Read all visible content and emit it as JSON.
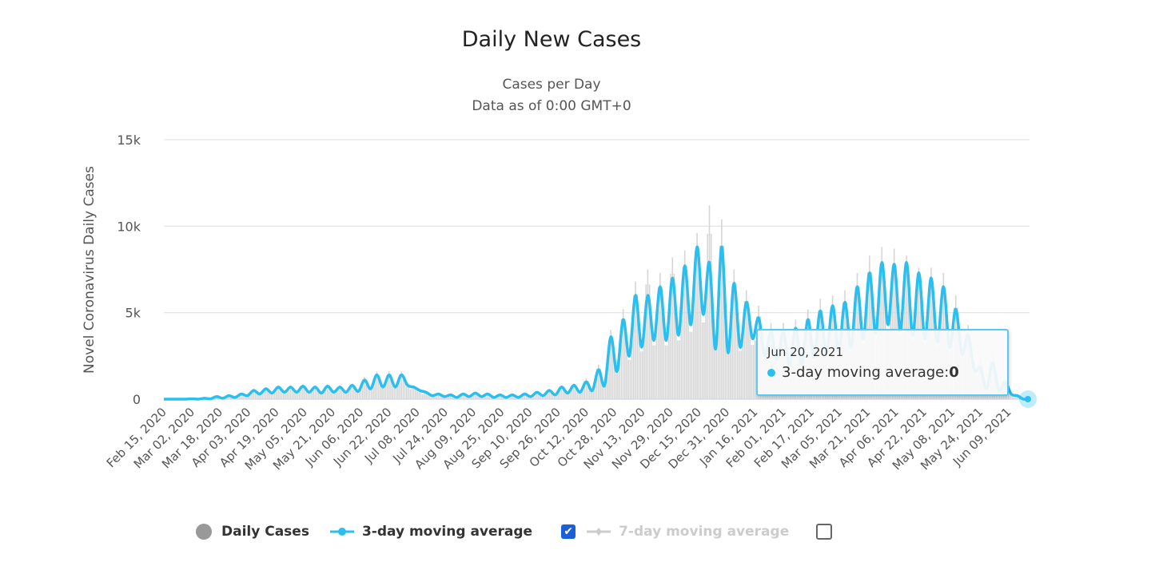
{
  "chart_data": {
    "type": "bar+line",
    "title": "Daily New Cases",
    "subtitle": [
      "Cases per Day",
      "Data as of 0:00 GMT+0"
    ],
    "ylabel": "Novel Coronavirus Daily Cases",
    "ylim": [
      0,
      15000
    ],
    "y_ticks": [
      {
        "value": 0,
        "label": "0"
      },
      {
        "value": 5000,
        "label": "5k"
      },
      {
        "value": 10000,
        "label": "10k"
      },
      {
        "value": 15000,
        "label": "15k"
      }
    ],
    "x_range": [
      "2020-02-15",
      "2021-06-20"
    ],
    "x_tick_labels": [
      "Feb 15, 2020",
      "Mar 02, 2020",
      "Mar 18, 2020",
      "Apr 03, 2020",
      "Apr 19, 2020",
      "May 05, 2020",
      "May 21, 2020",
      "Jun 06, 2020",
      "Jun 22, 2020",
      "Jul 08, 2020",
      "Jul 24, 2020",
      "Aug 09, 2020",
      "Aug 25, 2020",
      "Sep 10, 2020",
      "Sep 26, 2020",
      "Oct 12, 2020",
      "Oct 28, 2020",
      "Nov 13, 2020",
      "Nov 29, 2020",
      "Dec 15, 2020",
      "Dec 31, 2020",
      "Jan 16, 2021",
      "Feb 01, 2021",
      "Feb 17, 2021",
      "Mar 05, 2021",
      "Mar 21, 2021",
      "Apr 06, 2021",
      "Apr 22, 2021",
      "May 08, 2021",
      "May 24, 2021",
      "Jun 09, 2021"
    ],
    "grid": true,
    "legend_position": "bottom",
    "weeks": [
      "2020-02-15",
      "2020-02-22",
      "2020-02-29",
      "2020-03-07",
      "2020-03-14",
      "2020-03-21",
      "2020-03-28",
      "2020-04-04",
      "2020-04-11",
      "2020-04-18",
      "2020-04-25",
      "2020-05-02",
      "2020-05-09",
      "2020-05-16",
      "2020-05-23",
      "2020-05-30",
      "2020-06-06",
      "2020-06-13",
      "2020-06-20",
      "2020-06-27",
      "2020-07-04",
      "2020-07-11",
      "2020-07-18",
      "2020-07-25",
      "2020-08-01",
      "2020-08-08",
      "2020-08-15",
      "2020-08-22",
      "2020-08-29",
      "2020-09-05",
      "2020-09-12",
      "2020-09-19",
      "2020-09-26",
      "2020-10-03",
      "2020-10-10",
      "2020-10-17",
      "2020-10-24",
      "2020-10-31",
      "2020-11-07",
      "2020-11-14",
      "2020-11-21",
      "2020-11-28",
      "2020-12-05",
      "2020-12-12",
      "2020-12-19",
      "2020-12-26",
      "2021-01-02",
      "2021-01-09",
      "2021-01-16",
      "2021-01-23",
      "2021-01-30",
      "2021-02-06",
      "2021-02-13",
      "2021-02-20",
      "2021-02-27",
      "2021-03-06",
      "2021-03-13",
      "2021-03-20",
      "2021-03-27",
      "2021-04-03",
      "2021-04-10",
      "2021-04-17",
      "2021-04-24",
      "2021-05-01",
      "2021-05-08",
      "2021-05-15",
      "2021-05-22",
      "2021-05-29",
      "2021-06-05",
      "2021-06-12"
    ],
    "series": [
      {
        "name": "Daily Cases",
        "type": "bar",
        "color": "#d6d6d6",
        "weekly_max": [
          0,
          0,
          30,
          60,
          180,
          250,
          350,
          600,
          700,
          800,
          800,
          850,
          800,
          850,
          800,
          900,
          1300,
          1600,
          1600,
          1600,
          800,
          450,
          350,
          300,
          350,
          400,
          350,
          300,
          300,
          350,
          450,
          600,
          800,
          900,
          1200,
          2000,
          4000,
          5200,
          6800,
          7500,
          7300,
          8200,
          8600,
          9600,
          11200,
          10400,
          7500,
          6300,
          5400,
          4400,
          4400,
          4600,
          5200,
          5800,
          6000,
          6300,
          7300,
          8300,
          8800,
          8700,
          8300,
          7600,
          7600,
          7300,
          6000,
          4300,
          2400,
          2600,
          1200,
          300
        ]
      },
      {
        "name": "3-day moving average",
        "type": "line",
        "color": "#2bbff0",
        "weekly_high": [
          0,
          0,
          20,
          50,
          150,
          200,
          300,
          500,
          600,
          700,
          700,
          750,
          700,
          750,
          700,
          800,
          1100,
          1400,
          1400,
          1400,
          700,
          400,
          300,
          250,
          300,
          350,
          300,
          250,
          250,
          300,
          400,
          500,
          700,
          800,
          1000,
          1700,
          3600,
          4600,
          6000,
          6000,
          6500,
          7000,
          7700,
          8800,
          7900,
          8800,
          6700,
          5600,
          4700,
          3900,
          3900,
          4100,
          4600,
          5100,
          5400,
          5600,
          6500,
          7300,
          7900,
          7800,
          7900,
          7300,
          7000,
          6500,
          5200,
          3700,
          1800,
          2100,
          1000,
          200
        ],
        "weekly_low": [
          0,
          0,
          0,
          20,
          50,
          100,
          200,
          300,
          350,
          400,
          400,
          400,
          350,
          400,
          400,
          450,
          600,
          700,
          700,
          800,
          500,
          200,
          150,
          100,
          150,
          150,
          100,
          100,
          100,
          150,
          200,
          250,
          350,
          400,
          500,
          800,
          1600,
          2500,
          3000,
          3400,
          3400,
          3700,
          4300,
          4900,
          2900,
          2700,
          3000,
          3500,
          2500,
          2300,
          2000,
          2000,
          2400,
          2600,
          2800,
          3000,
          3500,
          3800,
          4300,
          4000,
          3700,
          3500,
          3300,
          3000,
          2600,
          1700,
          600,
          500,
          300,
          0
        ],
        "last_point": {
          "x": "2021-06-20",
          "y": 0
        }
      },
      {
        "name": "7-day moving average",
        "type": "line",
        "color": "#cccccc",
        "visible": false
      }
    ]
  },
  "legend": {
    "daily": "Daily Cases",
    "ma3": "3-day moving average",
    "ma7": "7-day moving average",
    "ma3_checked": true,
    "ma7_checked": false
  },
  "tooltip": {
    "date": "Jun 20, 2021",
    "series": "3-day moving average: ",
    "value": "0"
  }
}
